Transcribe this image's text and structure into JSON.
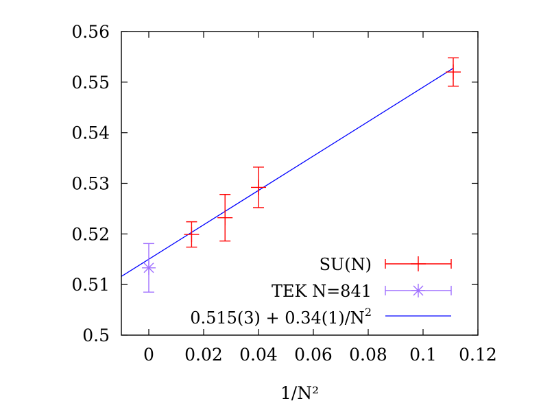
{
  "chart_data": {
    "type": "scatter",
    "title": "",
    "xlabel": "1/N²",
    "ylabel": "",
    "xlim": [
      -0.01,
      0.12
    ],
    "ylim": [
      0.5,
      0.56
    ],
    "x_ticks": [
      0,
      0.02,
      0.04,
      0.06,
      0.08,
      0.1,
      0.12
    ],
    "x_tick_labels": [
      "0",
      "0.02",
      "0.04",
      "0.06",
      "0.08",
      "0.1",
      "0.12"
    ],
    "y_ticks": [
      0.5,
      0.51,
      0.52,
      0.53,
      0.54,
      0.55,
      0.56
    ],
    "y_tick_labels": [
      "0.5",
      "0.51",
      "0.52",
      "0.53",
      "0.54",
      "0.55",
      "0.56"
    ],
    "grid": false,
    "legend_position": "bottom-right",
    "series": [
      {
        "name": "SU(N)",
        "label": "SU(N)",
        "color": "#ff0000",
        "marker": "plus",
        "x": [
          0.0156,
          0.0278,
          0.04,
          0.111
        ],
        "y": [
          0.5199,
          0.5232,
          0.5292,
          0.552
        ],
        "yerr": [
          0.0025,
          0.0046,
          0.004,
          0.0028
        ]
      },
      {
        "name": "TEK N=841",
        "label": "TEK N=841",
        "color": "#a070ff",
        "marker": "asterisk",
        "x": [
          0.0
        ],
        "y": [
          0.5133
        ],
        "yerr": [
          0.0048
        ]
      },
      {
        "name": "fit",
        "label_main": "0.515(3) + 0.34(1)/N",
        "label_sup": "2",
        "color": "#0000ff",
        "marker": "line",
        "intercept": 0.515,
        "slope": 0.34,
        "x_range": [
          -0.01,
          0.111
        ]
      }
    ]
  }
}
